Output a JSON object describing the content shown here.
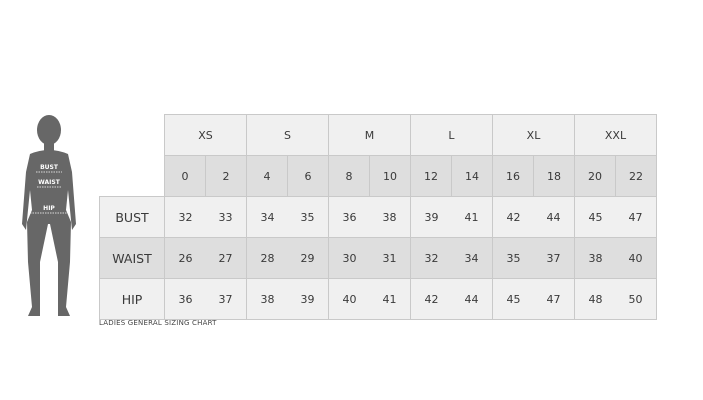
{
  "figure": {
    "labels": [
      "BUST",
      "WAIST",
      "HIP"
    ]
  },
  "sizes": [
    {
      "label": "XS",
      "numbers": [
        "0",
        "2"
      ]
    },
    {
      "label": "S",
      "numbers": [
        "4",
        "6"
      ]
    },
    {
      "label": "M",
      "numbers": [
        "8",
        "10"
      ]
    },
    {
      "label": "L",
      "numbers": [
        "12",
        "14"
      ]
    },
    {
      "label": "XL",
      "numbers": [
        "16",
        "18"
      ]
    },
    {
      "label": "XXL",
      "numbers": [
        "20",
        "22"
      ]
    }
  ],
  "rows": [
    {
      "label": "BUST",
      "values": [
        "32",
        "33",
        "34",
        "35",
        "36",
        "38",
        "39",
        "41",
        "42",
        "44",
        "45",
        "47"
      ]
    },
    {
      "label": "WAIST",
      "values": [
        "26",
        "27",
        "28",
        "29",
        "30",
        "31",
        "32",
        "34",
        "35",
        "37",
        "38",
        "40"
      ]
    },
    {
      "label": "HIP",
      "values": [
        "36",
        "37",
        "38",
        "39",
        "40",
        "41",
        "42",
        "44",
        "45",
        "47",
        "48",
        "50"
      ]
    }
  ],
  "caption": "LADIES GENERAL SIZING CHART",
  "colors": {
    "light": "#f0f0f0",
    "dark": "#dedede",
    "figure": "#666666"
  }
}
